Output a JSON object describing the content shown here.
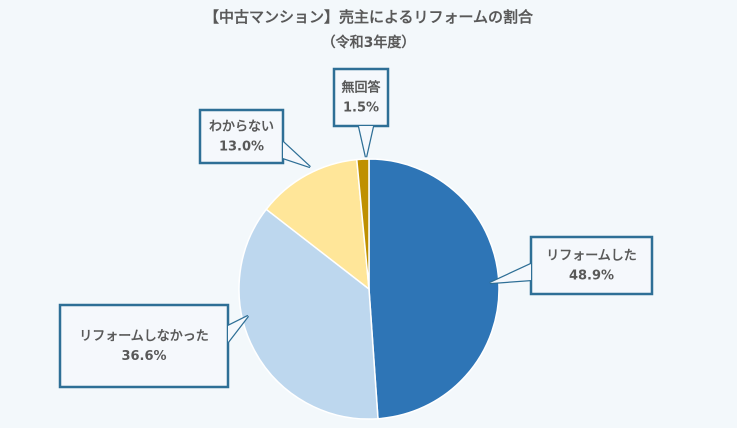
{
  "chart_data": {
    "type": "pie",
    "title": "【中古マンション】売主によるリフォームの割合",
    "subtitle": "（令和3年度）",
    "slices": [
      {
        "label": "リフォームした",
        "value": 48.9,
        "value_label": "48.9%",
        "color": "#2e75b6"
      },
      {
        "label": "リフォームしなかった",
        "value": 36.6,
        "value_label": "36.6%",
        "color": "#bdd7ee"
      },
      {
        "label": "わからない",
        "value": 13.0,
        "value_label": "13.0%",
        "color": "#ffe699"
      },
      {
        "label": "無回答",
        "value": 1.5,
        "value_label": "1.5%",
        "color": "#bf9000"
      }
    ],
    "start_angle": "12 o'clock",
    "direction": "clockwise",
    "callout_border_color": "#2e6f96",
    "callout_fill": "#f5f8fc",
    "text_color": "#595959"
  }
}
